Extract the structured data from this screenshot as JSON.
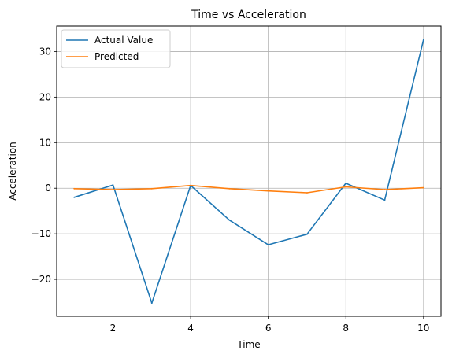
{
  "chart_data": {
    "type": "line",
    "title": "Time vs Acceleration",
    "xlabel": "Time",
    "ylabel": "Acceleration",
    "x": [
      1,
      2,
      3,
      4,
      5,
      6,
      7,
      8,
      9,
      10
    ],
    "xlim": [
      0.55,
      10.45
    ],
    "ylim": [
      -28.1,
      35.6
    ],
    "xticks": [
      2,
      4,
      6,
      8,
      10
    ],
    "yticks": [
      -20,
      -10,
      0,
      10,
      20,
      30
    ],
    "grid": true,
    "legend_position": "top-left",
    "series": [
      {
        "name": "Actual Value",
        "color": "#1f77b4",
        "values": [
          -2.0,
          0.7,
          -25.2,
          0.6,
          -7.0,
          -12.4,
          -10.1,
          1.1,
          -2.6,
          32.6
        ]
      },
      {
        "name": "Predicted",
        "color": "#ff7f0e",
        "values": [
          -0.1,
          -0.3,
          -0.1,
          0.6,
          -0.1,
          -0.6,
          -1.0,
          0.3,
          -0.3,
          0.1
        ]
      }
    ]
  }
}
